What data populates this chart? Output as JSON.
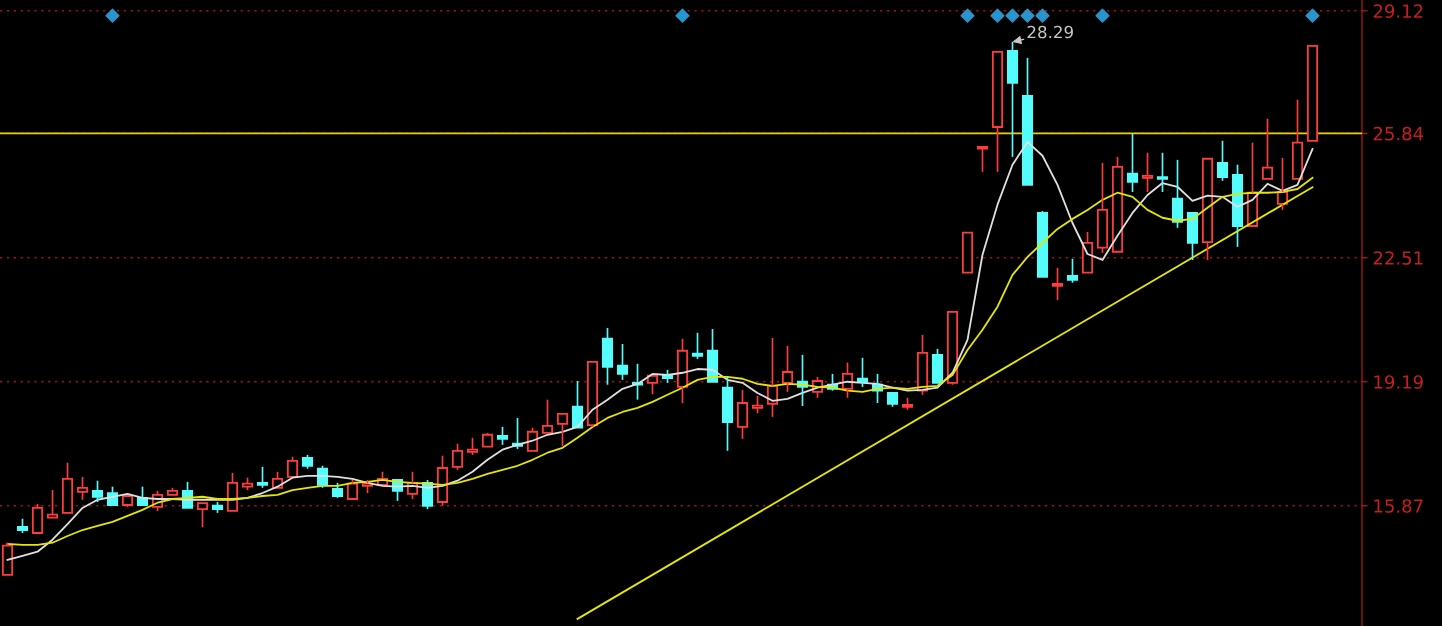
{
  "chart_data": {
    "type": "candlestick",
    "categories": [
      null,
      null,
      null,
      null,
      null,
      null,
      null,
      null,
      null,
      null,
      null,
      null,
      null,
      null,
      null,
      null,
      null,
      null,
      null,
      null,
      null,
      null,
      null,
      null,
      null,
      null,
      null,
      null,
      null,
      null,
      null,
      null,
      null,
      null,
      null,
      null,
      null,
      null,
      null,
      null,
      null,
      null,
      null,
      null,
      null,
      null,
      null,
      null,
      null,
      null,
      null,
      null,
      null,
      null,
      null,
      null,
      null,
      null,
      null,
      null,
      null,
      null,
      null,
      null,
      null,
      null,
      null,
      null,
      null,
      null,
      null,
      null,
      null,
      null,
      null,
      null,
      null,
      null,
      null,
      null,
      null,
      null,
      null,
      null,
      null,
      null,
      null,
      null
    ],
    "ohlc": [
      [
        14.02,
        14.88,
        14.02,
        14.8
      ],
      [
        15.3,
        15.52,
        15.14,
        15.22
      ],
      [
        15.14,
        15.92,
        15.14,
        15.81
      ],
      [
        15.55,
        16.29,
        15.55,
        15.63
      ],
      [
        15.68,
        17.02,
        15.68,
        16.59
      ],
      [
        16.24,
        16.64,
        16.03,
        16.35
      ],
      [
        16.27,
        16.54,
        15.97,
        16.11
      ],
      [
        16.21,
        16.38,
        15.89,
        15.89
      ],
      [
        15.89,
        16.13,
        15.84,
        16.13
      ],
      [
        16.08,
        16.38,
        15.89,
        15.89
      ],
      [
        15.84,
        16.27,
        15.73,
        16.16
      ],
      [
        16.16,
        16.35,
        16.16,
        16.27
      ],
      [
        16.27,
        16.51,
        15.81,
        15.81
      ],
      [
        15.78,
        15.94,
        15.3,
        15.94
      ],
      [
        15.87,
        15.97,
        15.68,
        15.78
      ],
      [
        15.73,
        16.75,
        15.73,
        16.48
      ],
      [
        16.38,
        16.62,
        16.29,
        16.46
      ],
      [
        16.48,
        16.91,
        16.35,
        16.43
      ],
      [
        16.35,
        16.78,
        16.35,
        16.59
      ],
      [
        16.64,
        17.18,
        16.64,
        17.07
      ],
      [
        17.15,
        17.23,
        16.86,
        16.94
      ],
      [
        16.86,
        16.94,
        16.35,
        16.43
      ],
      [
        16.32,
        16.48,
        16.08,
        16.13
      ],
      [
        16.05,
        16.56,
        16.05,
        16.46
      ],
      [
        16.4,
        16.56,
        16.21,
        16.46
      ],
      [
        16.43,
        16.78,
        16.43,
        16.59
      ],
      [
        16.56,
        16.56,
        16.0,
        16.27
      ],
      [
        16.19,
        16.78,
        16.05,
        16.48
      ],
      [
        16.48,
        16.56,
        15.78,
        15.87
      ],
      [
        15.97,
        17.21,
        15.87,
        16.88
      ],
      [
        16.91,
        17.53,
        16.83,
        17.34
      ],
      [
        17.31,
        17.69,
        17.23,
        17.37
      ],
      [
        17.45,
        17.82,
        17.45,
        17.77
      ],
      [
        17.74,
        17.98,
        17.5,
        17.66
      ],
      [
        17.53,
        18.22,
        17.39,
        17.47
      ],
      [
        17.34,
        17.96,
        17.34,
        17.85
      ],
      [
        17.82,
        18.71,
        17.82,
        18.01
      ],
      [
        18.06,
        18.33,
        17.47,
        18.33
      ],
      [
        18.52,
        19.21,
        17.96,
        17.96
      ],
      [
        18.03,
        19.72,
        17.98,
        19.72
      ],
      [
        20.34,
        20.63,
        19.11,
        19.59
      ],
      [
        19.62,
        20.2,
        19.24,
        19.4
      ],
      [
        19.16,
        19.67,
        18.71,
        19.11
      ],
      [
        19.16,
        19.35,
        18.86,
        19.35
      ],
      [
        19.35,
        19.51,
        19.16,
        19.29
      ],
      [
        19.05,
        20.34,
        18.62,
        20.02
      ],
      [
        19.94,
        20.5,
        19.8,
        19.88
      ],
      [
        20.02,
        20.6,
        19.19,
        19.19
      ],
      [
        19.03,
        19.32,
        17.34,
        18.11
      ],
      [
        17.98,
        18.97,
        17.66,
        18.62
      ],
      [
        18.49,
        18.81,
        18.35,
        18.55
      ],
      [
        18.6,
        20.36,
        18.25,
        19.08
      ],
      [
        19.16,
        20.15,
        18.92,
        19.45
      ],
      [
        19.19,
        19.91,
        18.54,
        19.05
      ],
      [
        18.92,
        19.32,
        18.76,
        19.21
      ],
      [
        19.11,
        19.4,
        18.95,
        19.0
      ],
      [
        19.0,
        19.7,
        18.76,
        19.4
      ],
      [
        19.27,
        19.83,
        19.05,
        19.19
      ],
      [
        19.11,
        19.4,
        18.62,
        18.95
      ],
      [
        18.89,
        18.89,
        18.52,
        18.6
      ],
      [
        18.52,
        18.76,
        18.44,
        18.57
      ],
      [
        18.95,
        20.44,
        18.84,
        19.96
      ],
      [
        19.91,
        20.07,
        19.16,
        19.16
      ],
      [
        19.16,
        21.06,
        19.11,
        21.06
      ],
      [
        22.11,
        23.18,
        22.11,
        23.18
      ],
      [
        25.43,
        25.48,
        24.81,
        25.48
      ],
      [
        26.01,
        28.02,
        24.81,
        28.02
      ],
      [
        28.05,
        28.29,
        25.21,
        27.19
      ],
      [
        26.84,
        27.86,
        24.46,
        24.46
      ],
      [
        23.71,
        23.76,
        22.0,
        22.0
      ],
      [
        21.76,
        22.24,
        21.38,
        21.81
      ],
      [
        22.02,
        22.48,
        21.84,
        21.92
      ],
      [
        22.11,
        23.2,
        22.11,
        22.91
      ],
      [
        22.78,
        25.05,
        22.64,
        23.79
      ],
      [
        22.67,
        25.21,
        22.67,
        24.94
      ],
      [
        24.76,
        25.83,
        24.27,
        24.54
      ],
      [
        24.65,
        25.32,
        24.27,
        24.7
      ],
      [
        24.67,
        25.32,
        24.27,
        24.62
      ],
      [
        24.09,
        25.13,
        23.31,
        23.47
      ],
      [
        23.71,
        23.71,
        22.45,
        22.91
      ],
      [
        22.93,
        25.16,
        22.45,
        25.16
      ],
      [
        25.05,
        25.64,
        24.57,
        24.67
      ],
      [
        24.73,
        25.0,
        22.8,
        23.36
      ],
      [
        23.36,
        25.59,
        23.36,
        24.25
      ],
      [
        24.62,
        26.23,
        24.62,
        24.92
      ],
      [
        23.95,
        25.18,
        23.79,
        24.27
      ],
      [
        24.62,
        26.74,
        24.62,
        25.59
      ],
      [
        25.64,
        28.18,
        25.64,
        28.18
      ]
    ],
    "colors": [
      "#ff3c3c",
      "#54fcfc",
      "#ff3c3c",
      "#ff3c3c",
      "#ff3c3c",
      "#ff3c3c",
      "#54fcfc",
      "#54fcfc",
      "#ff3c3c",
      "#54fcfc",
      "#ff3c3c",
      "#ff3c3c",
      "#54fcfc",
      "#ff3c3c",
      "#54fcfc",
      "#ff3c3c",
      "#ff3c3c",
      "#54fcfc",
      "#ff3c3c",
      "#ff3c3c",
      "#54fcfc",
      "#54fcfc",
      "#54fcfc",
      "#ff3c3c",
      "#ff3c3c",
      "#ff3c3c",
      "#54fcfc",
      "#ff3c3c",
      "#54fcfc",
      "#ff3c3c",
      "#ff3c3c",
      "#ff3c3c",
      "#ff3c3c",
      "#54fcfc",
      "#54fcfc",
      "#ff3c3c",
      "#ff3c3c",
      "#ff3c3c",
      "#54fcfc",
      "#ff3c3c",
      "#54fcfc",
      "#54fcfc",
      "#54fcfc",
      "#ff3c3c",
      "#54fcfc",
      "#ff3c3c",
      "#54fcfc",
      "#54fcfc",
      "#54fcfc",
      "#ff3c3c",
      "#ff3c3c",
      "#ff3c3c",
      "#ff3c3c",
      "#54fcfc",
      "#ff3c3c",
      "#54fcfc",
      "#ff3c3c",
      "#54fcfc",
      "#54fcfc",
      "#54fcfc",
      "#ff3c3c",
      "#ff3c3c",
      "#54fcfc",
      "#ff3c3c",
      "#ff3c3c",
      "#ff3c3c",
      "#ff3c3c",
      "#54fcfc",
      "#54fcfc",
      "#54fcfc",
      "#ff3c3c",
      "#54fcfc",
      "#ff3c3c",
      "#ff3c3c",
      "#ff3c3c",
      "#54fcfc",
      "#ff3c3c",
      "#54fcfc",
      "#54fcfc",
      "#54fcfc",
      "#ff3c3c",
      "#54fcfc",
      "#54fcfc",
      "#ff3c3c",
      "#ff3c3c",
      "#ff3c3c",
      "#ff3c3c",
      "#ff3c3c"
    ],
    "series": [
      {
        "type": "line",
        "color": "#e0e0e0",
        "values": [
          14.42,
          14.53,
          14.64,
          14.96,
          15.38,
          15.81,
          16.03,
          16.11,
          16.19,
          16.08,
          16.05,
          16.05,
          16.03,
          16.03,
          16.03,
          16.03,
          16.08,
          16.21,
          16.38,
          16.62,
          16.67,
          16.67,
          16.64,
          16.59,
          16.48,
          16.4,
          16.38,
          16.4,
          16.35,
          16.4,
          16.54,
          16.78,
          17.1,
          17.37,
          17.5,
          17.61,
          17.77,
          17.85,
          17.98,
          18.44,
          18.71,
          19.0,
          19.13,
          19.4,
          19.37,
          19.43,
          19.53,
          19.51,
          19.24,
          19.16,
          18.89,
          18.68,
          18.73,
          18.89,
          19.03,
          19.11,
          19.19,
          19.16,
          19.13,
          19.03,
          18.95,
          18.97,
          19.03,
          19.43,
          20.31,
          22.59,
          23.93,
          25.0,
          25.61,
          25.24,
          24.46,
          23.44,
          22.61,
          22.45,
          23.1,
          23.71,
          24.19,
          24.51,
          24.41,
          24.03,
          24.17,
          24.14,
          23.87,
          24.06,
          24.49,
          24.3,
          24.46,
          25.42
        ]
      },
      {
        "type": "line",
        "color": "#e6e600",
        "values": [
          14.85,
          14.82,
          14.82,
          14.88,
          15.06,
          15.22,
          15.33,
          15.44,
          15.6,
          15.76,
          15.95,
          16.05,
          16.08,
          16.11,
          16.05,
          16.05,
          16.08,
          16.13,
          16.16,
          16.29,
          16.35,
          16.4,
          16.4,
          16.48,
          16.51,
          16.56,
          16.51,
          16.48,
          16.46,
          16.43,
          16.48,
          16.59,
          16.72,
          16.83,
          16.94,
          17.1,
          17.29,
          17.42,
          17.69,
          17.98,
          18.22,
          18.38,
          18.49,
          18.65,
          18.84,
          19.03,
          19.24,
          19.32,
          19.32,
          19.27,
          19.13,
          19.08,
          19.13,
          19.11,
          19.05,
          19.03,
          18.95,
          18.92,
          19.0,
          19.03,
          19.0,
          19.05,
          19.08,
          19.37,
          20.04,
          20.58,
          21.2,
          22.05,
          22.53,
          22.91,
          23.28,
          23.55,
          23.79,
          24.06,
          24.25,
          24.14,
          23.79,
          23.58,
          23.5,
          23.55,
          23.85,
          24.14,
          24.22,
          24.25,
          24.25,
          24.27,
          24.35,
          24.65
        ]
      },
      {
        "type": "line",
        "color": "#e6e600",
        "values": [
          null,
          null,
          null,
          null,
          null,
          null,
          null,
          null,
          null,
          null,
          null,
          null,
          null,
          null,
          null,
          null,
          null,
          null,
          null,
          null,
          null,
          null,
          null,
          null,
          null,
          null,
          null,
          null,
          null,
          null,
          null,
          null,
          null,
          null,
          null,
          null,
          null,
          null,
          12.84,
          null,
          null,
          null,
          null,
          null,
          null,
          null,
          null,
          null,
          null,
          null,
          null,
          null,
          null,
          null,
          null,
          null,
          null,
          null,
          null,
          null,
          null,
          null,
          null,
          null,
          null,
          null,
          null,
          null,
          null,
          null,
          null,
          null,
          null,
          null,
          null,
          null,
          null,
          null,
          null,
          null,
          null,
          null,
          null,
          null,
          null,
          null,
          null,
          24.4
        ]
      },
      {
        "type": "scatter",
        "color": "#2a94cc",
        "marker": "diamond",
        "values": [
          null,
          null,
          null,
          null,
          null,
          null,
          null,
          28.99,
          null,
          null,
          null,
          null,
          null,
          null,
          null,
          null,
          null,
          null,
          null,
          null,
          null,
          null,
          null,
          null,
          null,
          null,
          null,
          null,
          null,
          null,
          null,
          null,
          null,
          null,
          null,
          null,
          null,
          null,
          null,
          null,
          null,
          null,
          null,
          null,
          null,
          28.99,
          null,
          null,
          null,
          null,
          null,
          null,
          null,
          null,
          null,
          null,
          null,
          null,
          null,
          null,
          null,
          null,
          null,
          null,
          28.99,
          null,
          28.99,
          28.99,
          28.99,
          28.99,
          null,
          null,
          null,
          28.99,
          null,
          null,
          null,
          null,
          null,
          null,
          null,
          null,
          null,
          null,
          null,
          null,
          null,
          28.99
        ]
      }
    ],
    "ref_lines": [
      {
        "axis": "y",
        "value": 25.84,
        "color": "#e6d200"
      }
    ],
    "annotations": [
      "28.29"
    ],
    "ylim": [
      12.65,
      29.41
    ],
    "yticks": [
      15.87,
      19.19,
      22.51,
      25.84,
      29.12
    ],
    "tick_labels": "y",
    "grid": "y"
  }
}
